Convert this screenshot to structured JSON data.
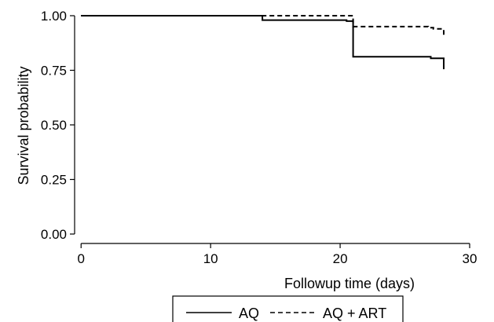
{
  "chart_data": {
    "type": "line",
    "step": true,
    "xlabel": "Followup time (days)",
    "ylabel": "Survival probability",
    "xlim": [
      -0.5,
      30
    ],
    "ylim": [
      0,
      1.0
    ],
    "x_ticks": [
      0,
      10,
      20,
      30
    ],
    "x_tick_labels": [
      "0",
      "10",
      "20",
      "30"
    ],
    "y_ticks": [
      0,
      0.25,
      0.5,
      0.75,
      1.0
    ],
    "y_tick_labels": [
      "0.00",
      "0.25",
      "0.50",
      "0.75",
      "1.00"
    ],
    "grid": false,
    "legend_position": "bottom",
    "series": [
      {
        "name": "AQ",
        "style": "solid",
        "color": "#000000",
        "points": [
          [
            0,
            1.0
          ],
          [
            14,
            1.0
          ],
          [
            14,
            0.98
          ],
          [
            20.5,
            0.98
          ],
          [
            20.5,
            0.975
          ],
          [
            21,
            0.975
          ],
          [
            21,
            0.812
          ],
          [
            27,
            0.812
          ],
          [
            27,
            0.805
          ],
          [
            28,
            0.805
          ],
          [
            28,
            0.755
          ]
        ]
      },
      {
        "name": "AQ + ART",
        "style": "dashed",
        "color": "#000000",
        "points": [
          [
            0,
            1.0
          ],
          [
            21,
            1.0
          ],
          [
            21,
            0.95
          ],
          [
            26.8,
            0.95
          ],
          [
            26.8,
            0.945
          ],
          [
            27.2,
            0.945
          ],
          [
            27.2,
            0.94
          ],
          [
            28,
            0.94
          ],
          [
            28,
            0.908
          ]
        ]
      }
    ]
  }
}
